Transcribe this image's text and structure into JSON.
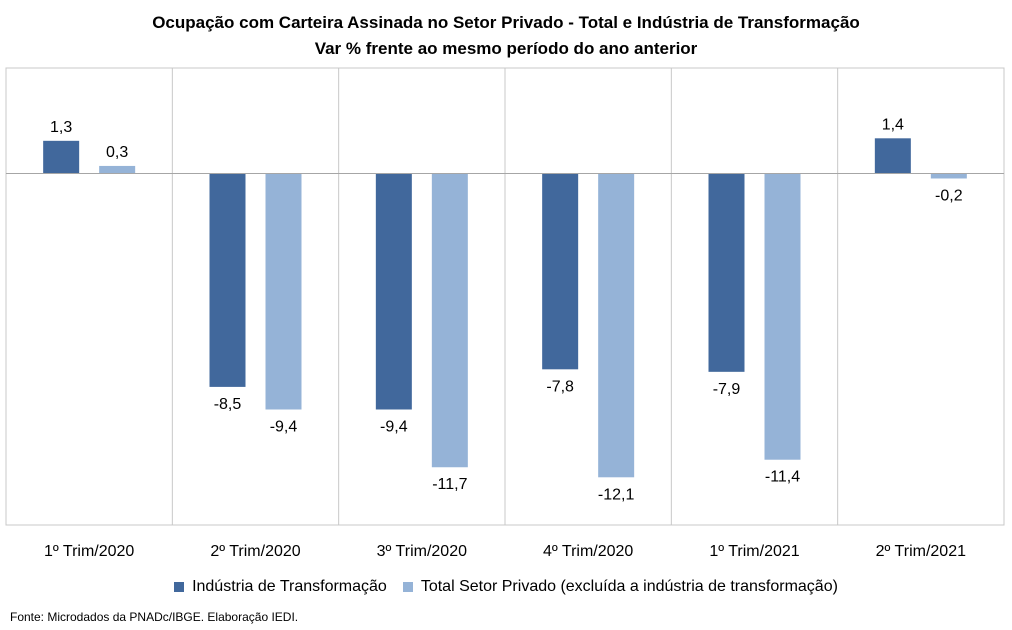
{
  "chart_data": {
    "type": "bar",
    "title": "Ocupação com Carteira Assinada no Setor Privado  - Total e Indústria de Transformação",
    "subtitle": "Var % frente ao mesmo período do ano anterior",
    "categories": [
      "1º Trim/2020",
      "2º Trim/2020",
      "3º Trim/2020",
      "4º Trim/2020",
      "1º Trim/2021",
      "2º Trim/2021"
    ],
    "series": [
      {
        "name": "Indústria de Transformação",
        "color": "#41689C",
        "values": [
          1.3,
          -8.5,
          -9.4,
          -7.8,
          -7.9,
          1.4
        ],
        "labels": [
          "1,3",
          "-8,5",
          "-9,4",
          "-7,8",
          "-7,9",
          "1,4"
        ]
      },
      {
        "name": "Total Setor Privado (excluída a indústria de transformação)",
        "color": "#95B3D7",
        "values": [
          0.3,
          -9.4,
          -11.7,
          -12.1,
          -11.4,
          -0.2
        ],
        "labels": [
          "0,3",
          "-9,4",
          "-11,7",
          "-12,1",
          "-11,4",
          "-0,2"
        ]
      }
    ],
    "ylim": [
      -14,
      4.2
    ],
    "grid": false,
    "legend_position": "bottom"
  },
  "source": "Fonte: Microdados da PNADc/IBGE. Elaboração IEDI."
}
